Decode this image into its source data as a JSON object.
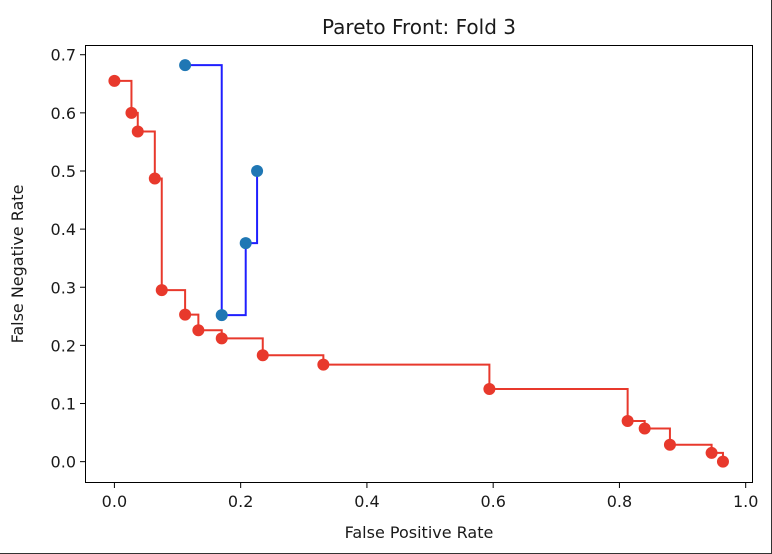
{
  "chart_data": {
    "type": "line",
    "title": "Pareto Front: Fold 3",
    "xlabel": "False Positive Rate",
    "ylabel": "False Negative Rate",
    "xlim": [
      -0.045,
      1.01
    ],
    "ylim": [
      -0.035,
      0.715
    ],
    "xticks": [
      {
        "value": 0.0,
        "label": "0.0"
      },
      {
        "value": 0.2,
        "label": "0.2"
      },
      {
        "value": 0.4,
        "label": "0.4"
      },
      {
        "value": 0.6,
        "label": "0.6"
      },
      {
        "value": 0.8,
        "label": "0.8"
      },
      {
        "value": 1.0,
        "label": "1.0"
      }
    ],
    "yticks": [
      {
        "value": 0.0,
        "label": "0.0"
      },
      {
        "value": 0.1,
        "label": "0.1"
      },
      {
        "value": 0.2,
        "label": "0.2"
      },
      {
        "value": 0.3,
        "label": "0.3"
      },
      {
        "value": 0.4,
        "label": "0.4"
      },
      {
        "value": 0.5,
        "label": "0.5"
      },
      {
        "value": 0.6,
        "label": "0.6"
      },
      {
        "value": 0.7,
        "label": "0.7"
      }
    ],
    "grid": false,
    "legend": null,
    "series": [
      {
        "color": "#1f1fff",
        "marker_color": "#1f77b4",
        "step": "post",
        "points": [
          {
            "x": 0.112,
            "y": 0.682
          },
          {
            "x": 0.17,
            "y": 0.252
          },
          {
            "x": 0.208,
            "y": 0.376
          },
          {
            "x": 0.226,
            "y": 0.5
          }
        ]
      },
      {
        "color": "#e8392c",
        "marker_color": "#e8392c",
        "step": "post",
        "points": [
          {
            "x": 0.0,
            "y": 0.655
          },
          {
            "x": 0.027,
            "y": 0.6
          },
          {
            "x": 0.037,
            "y": 0.568
          },
          {
            "x": 0.064,
            "y": 0.487
          },
          {
            "x": 0.075,
            "y": 0.295
          },
          {
            "x": 0.112,
            "y": 0.253
          },
          {
            "x": 0.133,
            "y": 0.226
          },
          {
            "x": 0.17,
            "y": 0.212
          },
          {
            "x": 0.235,
            "y": 0.183
          },
          {
            "x": 0.331,
            "y": 0.167
          },
          {
            "x": 0.594,
            "y": 0.125
          },
          {
            "x": 0.813,
            "y": 0.07
          },
          {
            "x": 0.84,
            "y": 0.057
          },
          {
            "x": 0.88,
            "y": 0.029
          },
          {
            "x": 0.946,
            "y": 0.015
          },
          {
            "x": 0.964,
            "y": 0.0
          }
        ]
      }
    ]
  }
}
